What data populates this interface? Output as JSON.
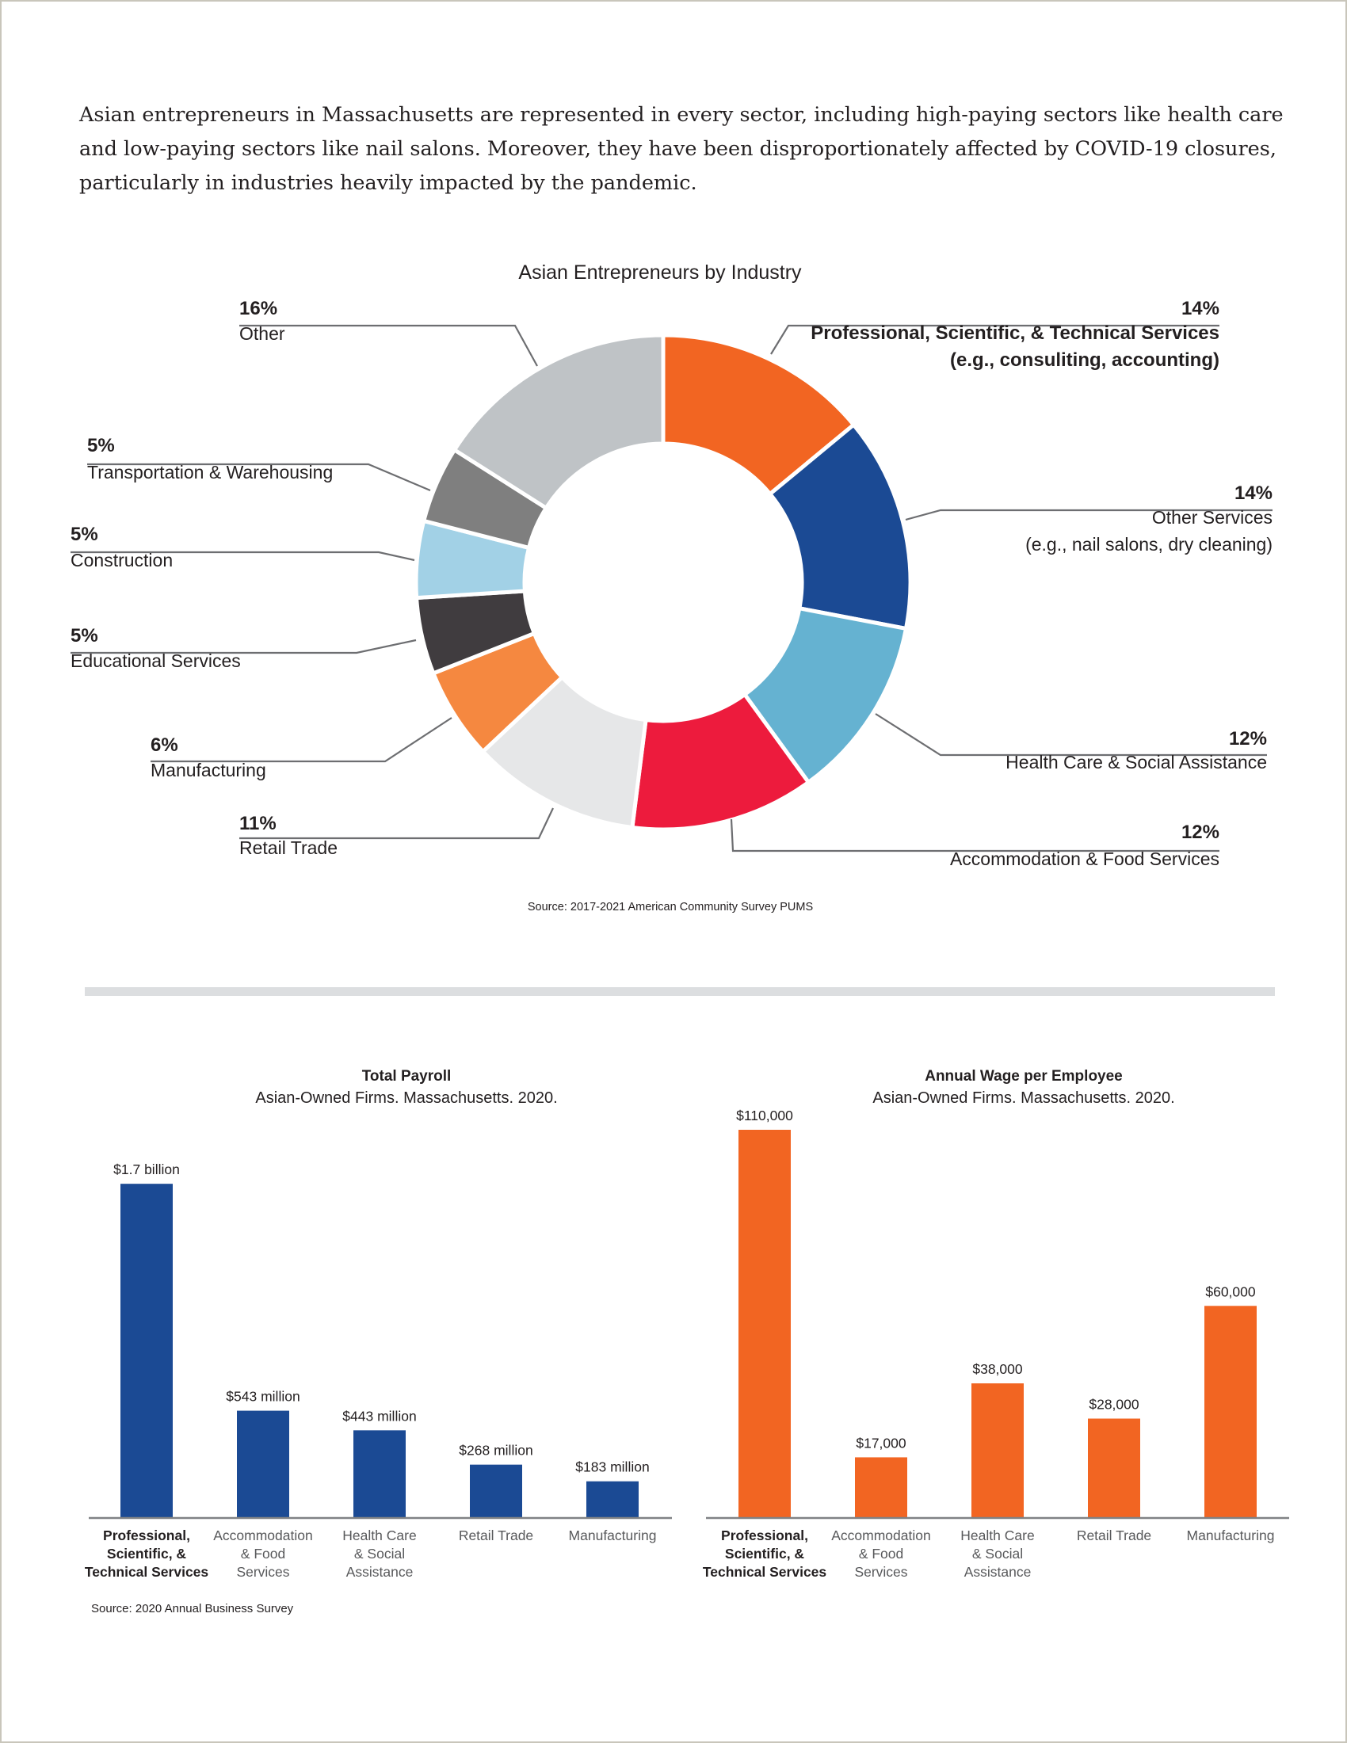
{
  "intro": {
    "text": "Asian entrepreneurs in Massachusetts are represented in every sector, including high-paying sectors like health care and low-paying sectors like nail salons. Moreover, they have been disproportionately affected by COVID-19 closures, particularly in industries heavily impacted by the pandemic."
  },
  "chart_data": [
    {
      "type": "pie",
      "title": "Asian Entrepreneurs by Industry",
      "source": "Source: 2017-2021 American Community Survey PUMS",
      "slices": [
        {
          "label": "Professional, Scientific, & Technical Services",
          "sublabel": "(e.g., consuliting, accounting)",
          "value": 14,
          "value_label": "14%",
          "color": "#f26522"
        },
        {
          "label": "Other Services",
          "sublabel": "(e.g., nail salons, dry cleaning)",
          "value": 14,
          "value_label": "14%",
          "color": "#1b4a94"
        },
        {
          "label": "Health Care & Social Assistance",
          "sublabel": "",
          "value": 12,
          "value_label": "12%",
          "color": "#65b2d1"
        },
        {
          "label": "Accommodation & Food Services",
          "sublabel": "",
          "value": 12,
          "value_label": "12%",
          "color": "#ed1b3d"
        },
        {
          "label": "Retail Trade",
          "sublabel": "",
          "value": 11,
          "value_label": "11%",
          "color": "#e6e7e8"
        },
        {
          "label": "Manufacturing",
          "sublabel": "",
          "value": 6,
          "value_label": "6%",
          "color": "#f58840"
        },
        {
          "label": "Educational Services",
          "sublabel": "",
          "value": 5,
          "value_label": "5%",
          "color": "#403c3f"
        },
        {
          "label": "Construction",
          "sublabel": "",
          "value": 5,
          "value_label": "5%",
          "color": "#a2d1e6"
        },
        {
          "label": "Transportation & Warehousing",
          "sublabel": "",
          "value": 5,
          "value_label": "5%",
          "color": "#7f7f7f"
        },
        {
          "label": "Other",
          "sublabel": "",
          "value": 16,
          "value_label": "16%",
          "color": "#bfc3c6"
        }
      ]
    },
    {
      "type": "bar",
      "title": "Total Payroll",
      "subtitle": "Asian-Owned Firms. Massachusetts. 2020.",
      "color": "#1b4a94",
      "unit": "million USD",
      "categories": [
        "Professional, Scientific, & Technical Services",
        "Accommodation & Food Services",
        "Health Care & Social Assistance",
        "Retail Trade",
        "Manufacturing"
      ],
      "category_lines": [
        [
          "Professional,",
          "Scientific, &",
          "Technical Services"
        ],
        [
          "Accommodation",
          "& Food",
          "Services"
        ],
        [
          "Health Care",
          "& Social",
          "Assistance"
        ],
        [
          "Retail Trade"
        ],
        [
          "Manufacturing"
        ]
      ],
      "values": [
        1700,
        543,
        443,
        268,
        183
      ],
      "value_labels": [
        "$1.7 billion",
        "$543 million",
        "$443 million",
        "$268 million",
        "$183 million"
      ],
      "ylim": [
        0,
        1830
      ],
      "source": "Source: 2020 Annual Business Survey"
    },
    {
      "type": "bar",
      "title": "Annual Wage per Employee",
      "subtitle": "Asian-Owned Firms. Massachusetts. 2020.",
      "color": "#f26522",
      "unit": "USD",
      "categories": [
        "Professional, Scientific, & Technical Services",
        "Accommodation & Food Services",
        "Health Care & Social Assistance",
        "Retail Trade",
        "Manufacturing"
      ],
      "category_lines": [
        [
          "Professional,",
          "Scientific, &",
          "Technical Services"
        ],
        [
          "Accommodation",
          "& Food",
          "Services"
        ],
        [
          "Health Care",
          "& Social",
          "Assistance"
        ],
        [
          "Retail Trade"
        ],
        [
          "Manufacturing"
        ]
      ],
      "values": [
        110000,
        17000,
        38000,
        28000,
        60000
      ],
      "value_labels": [
        "$110,000",
        "$17,000",
        "$38,000",
        "$28,000",
        "$60,000"
      ],
      "ylim": [
        0,
        110000
      ]
    }
  ]
}
